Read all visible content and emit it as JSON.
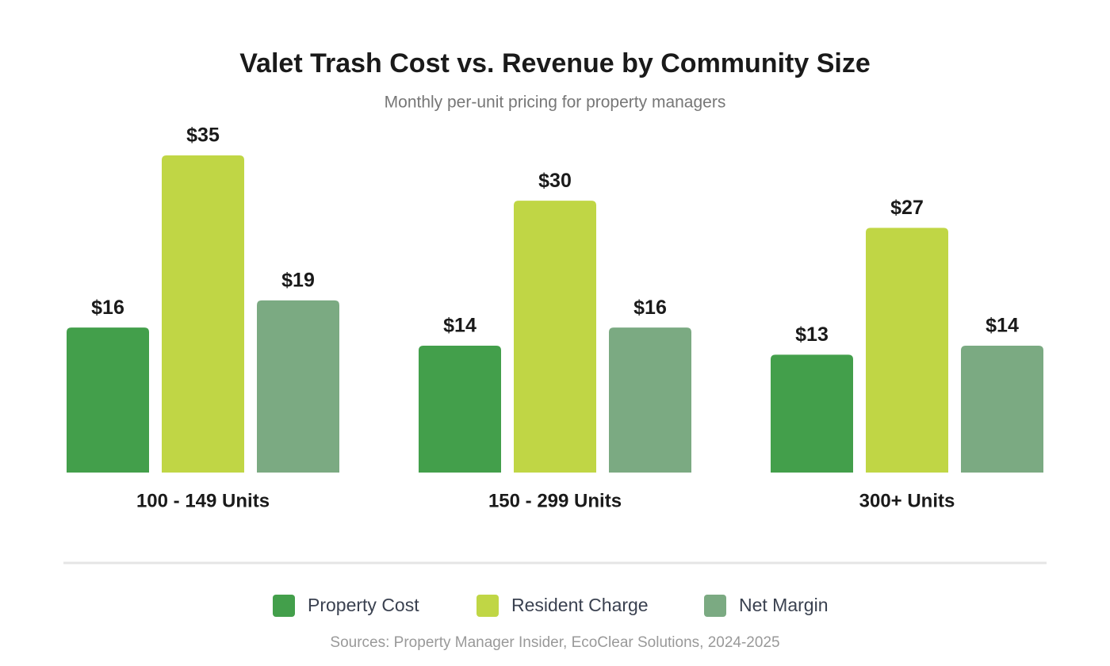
{
  "chart_data": {
    "type": "bar",
    "title": "Valet Trash Cost vs. Revenue by Community Size",
    "subtitle": "Monthly per-unit pricing for property managers",
    "categories": [
      "100 - 149 Units",
      "150 - 299 Units",
      "300+ Units"
    ],
    "series": [
      {
        "name": "Property Cost",
        "color": "#439f4b",
        "values": [
          16,
          14,
          13
        ],
        "value_labels": [
          "$16",
          "$14",
          "$13"
        ]
      },
      {
        "name": "Resident Charge",
        "color": "#c0d645",
        "values": [
          35,
          30,
          27
        ],
        "value_labels": [
          "$35",
          "$30",
          "$27"
        ]
      },
      {
        "name": "Net Margin",
        "color": "#7baa82",
        "values": [
          19,
          16,
          14
        ],
        "value_labels": [
          "$19",
          "$16",
          "$14"
        ]
      }
    ],
    "source": "Sources: Property Manager Insider, EcoClear Solutions, 2024-2025"
  }
}
